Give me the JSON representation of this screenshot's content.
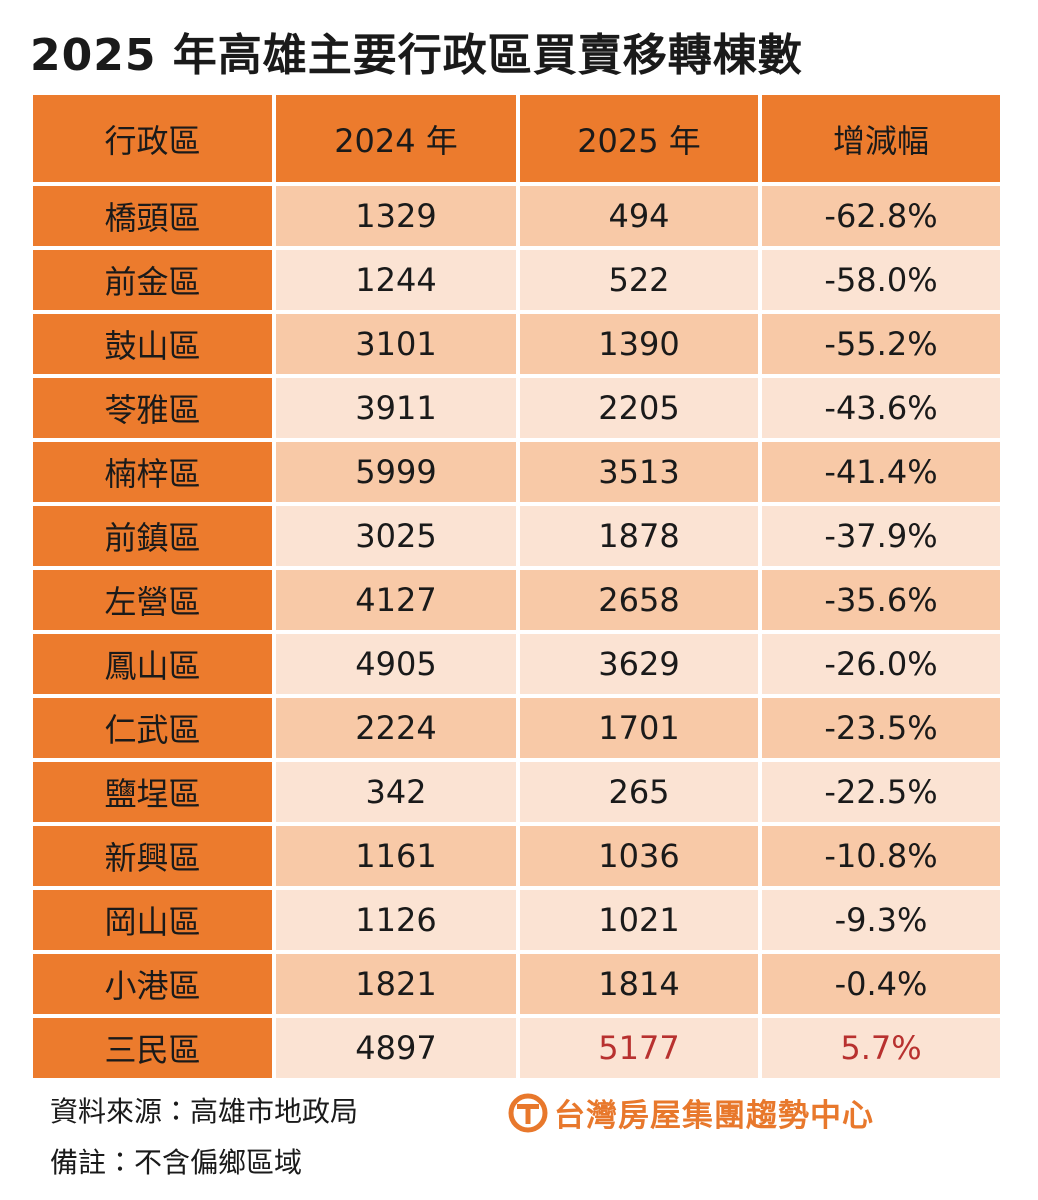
{
  "title": "2025 年高雄主要行政區買賣移轉棟數",
  "table": {
    "header": [
      "行政區",
      "2024 年",
      "2025 年",
      "增減幅"
    ],
    "rows": [
      [
        "橋頭區",
        "1329",
        "494",
        "-62.8%"
      ],
      [
        "前金區",
        "1244",
        "522",
        "-58.0%"
      ],
      [
        "鼓山區",
        "3101",
        "1390",
        "-55.2%"
      ],
      [
        "苓雅區",
        "3911",
        "2205",
        "-43.6%"
      ],
      [
        "楠梓區",
        "5999",
        "3513",
        "-41.4%"
      ],
      [
        "前鎮區",
        "3025",
        "1878",
        "-37.9%"
      ],
      [
        "左營區",
        "4127",
        "2658",
        "-35.6%"
      ],
      [
        "鳳山區",
        "4905",
        "3629",
        "-26.0%"
      ],
      [
        "仁武區",
        "2224",
        "1701",
        "-23.5%"
      ],
      [
        "鹽埕區",
        "342",
        "265",
        "-22.5%"
      ],
      [
        "新興區",
        "1161",
        "1036",
        "-10.8%"
      ],
      [
        "岡山區",
        "1126",
        "1021",
        "-9.3%"
      ],
      [
        "小港區",
        "1821",
        "1814",
        "-0.4%"
      ],
      [
        "三民區",
        "4897",
        "5177",
        "5.7%"
      ]
    ]
  },
  "footer": {
    "source": "資料來源：高雄市地政局",
    "note": "備註：不含偏鄉區域",
    "logo": "台灣房屋集團趨勢中心"
  }
}
